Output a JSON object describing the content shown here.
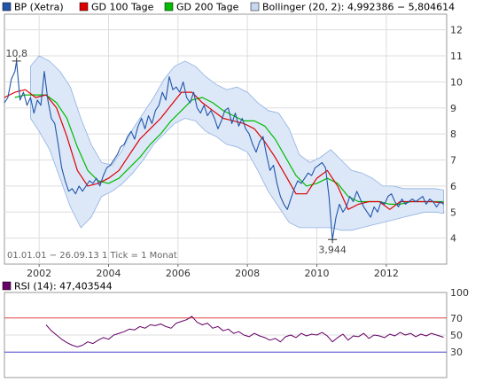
{
  "chart_data": [
    {
      "type": "line",
      "legend": {
        "placement": "top",
        "entries": [
          {
            "label": "BP (Xetra)",
            "color": "#2255aa",
            "swatch": "box-blue"
          },
          {
            "label": "GD 100 Tage",
            "color": "#dd0000",
            "swatch": "box-red"
          },
          {
            "label": "GD 200 Tage",
            "color": "#00bb00",
            "swatch": "box-green"
          },
          {
            "label": "Bollinger (20, 2): 4,992386 − 5,804614",
            "color": "#c8d8f0",
            "swatch": "box-lightblue"
          }
        ]
      },
      "y_ticks": [
        "4",
        "5",
        "6",
        "7",
        "8",
        "9",
        "10",
        "11",
        "12"
      ],
      "x_ticks": [
        "2002",
        "2004",
        "2006",
        "2008",
        "2010",
        "2012"
      ],
      "ylim": [
        3.0,
        12.6
      ],
      "xlim": [
        2001.0,
        2013.74
      ],
      "grid": true,
      "info_text": "01.01.01 − 26.09.13   1 Tick = 1 Monat",
      "annotations": [
        {
          "text": "10,8",
          "x": 2001.35,
          "y": 10.8
        },
        {
          "text": "3,944",
          "x": 2010.45,
          "y": 3.944
        }
      ],
      "series": [
        {
          "name": "BP (Xetra)",
          "color": "#2255aa",
          "x": [
            2001.0,
            2001.1,
            2001.2,
            2001.3,
            2001.35,
            2001.45,
            2001.55,
            2001.65,
            2001.75,
            2001.85,
            2001.95,
            2002.05,
            2002.15,
            2002.25,
            2002.35,
            2002.45,
            2002.55,
            2002.65,
            2002.75,
            2002.85,
            2002.95,
            2003.05,
            2003.15,
            2003.25,
            2003.35,
            2003.45,
            2003.55,
            2003.65,
            2003.75,
            2003.85,
            2003.95,
            2004.05,
            2004.15,
            2004.25,
            2004.35,
            2004.45,
            2004.55,
            2004.65,
            2004.75,
            2004.85,
            2004.95,
            2005.05,
            2005.15,
            2005.25,
            2005.35,
            2005.45,
            2005.55,
            2005.65,
            2005.75,
            2005.85,
            2005.95,
            2006.05,
            2006.15,
            2006.25,
            2006.35,
            2006.45,
            2006.55,
            2006.65,
            2006.75,
            2006.85,
            2006.95,
            2007.05,
            2007.15,
            2007.25,
            2007.35,
            2007.45,
            2007.55,
            2007.65,
            2007.75,
            2007.85,
            2007.95,
            2008.05,
            2008.15,
            2008.25,
            2008.35,
            2008.45,
            2008.55,
            2008.65,
            2008.75,
            2008.85,
            2008.95,
            2009.05,
            2009.15,
            2009.25,
            2009.35,
            2009.45,
            2009.55,
            2009.65,
            2009.75,
            2009.85,
            2009.95,
            2010.05,
            2010.15,
            2010.25,
            2010.35,
            2010.45,
            2010.55,
            2010.65,
            2010.75,
            2010.85,
            2010.95,
            2011.05,
            2011.15,
            2011.25,
            2011.35,
            2011.45,
            2011.55,
            2011.65,
            2011.75,
            2011.85,
            2011.95,
            2012.05,
            2012.15,
            2012.25,
            2012.35,
            2012.45,
            2012.55,
            2012.65,
            2012.75,
            2012.85,
            2012.95,
            2013.05,
            2013.15,
            2013.25,
            2013.35,
            2013.45,
            2013.55,
            2013.65
          ],
          "values": [
            9.2,
            9.4,
            10.1,
            10.4,
            10.8,
            9.3,
            9.6,
            9.1,
            9.4,
            8.8,
            9.3,
            9.1,
            10.4,
            9.3,
            8.6,
            8.4,
            7.6,
            6.7,
            6.2,
            5.8,
            5.9,
            5.7,
            6.0,
            5.8,
            6.0,
            6.2,
            6.1,
            6.3,
            6.0,
            6.4,
            6.7,
            6.8,
            7.0,
            7.2,
            7.5,
            7.6,
            7.9,
            8.1,
            7.8,
            8.3,
            8.6,
            8.2,
            8.7,
            8.4,
            8.9,
            9.1,
            9.6,
            9.3,
            10.2,
            9.7,
            9.8,
            9.6,
            10.0,
            9.4,
            9.2,
            9.6,
            9.0,
            8.8,
            9.1,
            8.7,
            8.9,
            8.6,
            8.2,
            8.5,
            8.9,
            9.0,
            8.4,
            8.8,
            8.3,
            8.6,
            8.2,
            8.0,
            7.6,
            7.3,
            7.7,
            7.9,
            7.2,
            6.6,
            6.8,
            6.1,
            5.6,
            5.3,
            5.1,
            5.5,
            5.9,
            6.2,
            6.1,
            6.3,
            6.5,
            6.4,
            6.7,
            6.8,
            6.9,
            6.7,
            5.6,
            3.94,
            4.8,
            5.3,
            5.0,
            5.2,
            5.6,
            5.4,
            5.8,
            5.5,
            5.2,
            5.0,
            4.8,
            5.2,
            5.0,
            5.4,
            5.3,
            5.6,
            5.7,
            5.4,
            5.2,
            5.5,
            5.3,
            5.4,
            5.5,
            5.4,
            5.5,
            5.6,
            5.3,
            5.5,
            5.4,
            5.2,
            5.4,
            5.3
          ]
        },
        {
          "name": "GD 100 Tage",
          "color": "#dd0000",
          "x": [
            2001.0,
            2001.3,
            2001.6,
            2001.9,
            2002.2,
            2002.5,
            2002.8,
            2003.1,
            2003.4,
            2003.7,
            2004.0,
            2004.3,
            2004.6,
            2004.9,
            2005.2,
            2005.5,
            2005.8,
            2006.1,
            2006.4,
            2006.7,
            2007.0,
            2007.3,
            2007.6,
            2007.9,
            2008.2,
            2008.5,
            2008.8,
            2009.1,
            2009.4,
            2009.7,
            2010.0,
            2010.3,
            2010.6,
            2010.9,
            2011.2,
            2011.5,
            2011.8,
            2012.1,
            2012.4,
            2012.7,
            2013.0,
            2013.3,
            2013.65
          ],
          "values": [
            9.4,
            9.6,
            9.7,
            9.4,
            9.5,
            9.0,
            7.9,
            6.6,
            6.0,
            6.1,
            6.3,
            6.6,
            7.2,
            7.8,
            8.2,
            8.6,
            9.1,
            9.6,
            9.6,
            9.2,
            8.9,
            8.6,
            8.5,
            8.4,
            8.2,
            7.7,
            7.1,
            6.4,
            5.7,
            5.7,
            6.3,
            6.6,
            6.0,
            5.1,
            5.3,
            5.4,
            5.4,
            5.1,
            5.4,
            5.4,
            5.4,
            5.4,
            5.35
          ]
        },
        {
          "name": "GD 200 Tage",
          "color": "#00bb00",
          "x": [
            2001.3,
            2001.6,
            2001.9,
            2002.2,
            2002.5,
            2002.8,
            2003.1,
            2003.4,
            2003.7,
            2004.0,
            2004.3,
            2004.6,
            2004.9,
            2005.2,
            2005.5,
            2005.8,
            2006.1,
            2006.4,
            2006.7,
            2007.0,
            2007.3,
            2007.6,
            2007.9,
            2008.2,
            2008.5,
            2008.8,
            2009.1,
            2009.4,
            2009.7,
            2010.0,
            2010.3,
            2010.6,
            2010.9,
            2011.2,
            2011.5,
            2011.8,
            2012.1,
            2012.4,
            2012.7,
            2013.0,
            2013.3,
            2013.65
          ],
          "values": [
            9.4,
            9.5,
            9.5,
            9.5,
            9.2,
            8.6,
            7.5,
            6.6,
            6.2,
            6.1,
            6.3,
            6.7,
            7.1,
            7.6,
            8.0,
            8.5,
            8.9,
            9.3,
            9.4,
            9.2,
            8.9,
            8.7,
            8.5,
            8.5,
            8.3,
            7.8,
            7.1,
            6.4,
            6.0,
            6.1,
            6.3,
            6.1,
            5.6,
            5.4,
            5.4,
            5.4,
            5.3,
            5.3,
            5.4,
            5.4,
            5.4,
            5.4
          ]
        }
      ],
      "bollinger": {
        "name": "Bollinger (20, 2)",
        "color": "#dce8f8",
        "x": [
          2001.75,
          2002.0,
          2002.3,
          2002.6,
          2002.9,
          2003.2,
          2003.5,
          2003.8,
          2004.1,
          2004.4,
          2004.7,
          2005.0,
          2005.3,
          2005.6,
          2005.9,
          2006.2,
          2006.5,
          2006.8,
          2007.1,
          2007.4,
          2007.7,
          2008.0,
          2008.3,
          2008.6,
          2008.9,
          2009.2,
          2009.5,
          2009.8,
          2010.1,
          2010.4,
          2010.7,
          2011.0,
          2011.3,
          2011.6,
          2011.9,
          2012.2,
          2012.5,
          2012.8,
          2013.1,
          2013.4,
          2013.65
        ],
        "upper": [
          10.6,
          11.0,
          10.8,
          10.4,
          9.8,
          8.6,
          7.6,
          6.9,
          6.8,
          7.4,
          8.2,
          8.8,
          9.4,
          10.1,
          10.6,
          10.8,
          10.6,
          10.2,
          9.9,
          9.7,
          9.8,
          9.6,
          9.2,
          8.9,
          8.8,
          8.2,
          7.2,
          6.9,
          7.1,
          7.4,
          7.0,
          6.6,
          6.5,
          6.3,
          6.0,
          6.0,
          5.9,
          5.9,
          5.9,
          5.9,
          5.85
        ],
        "lower": [
          8.6,
          8.1,
          7.4,
          6.3,
          5.2,
          4.4,
          4.8,
          5.6,
          5.8,
          6.1,
          6.5,
          7.0,
          7.6,
          8.0,
          8.4,
          8.6,
          8.5,
          8.1,
          7.9,
          7.6,
          7.5,
          7.3,
          6.6,
          5.8,
          5.2,
          4.6,
          4.4,
          4.4,
          4.4,
          4.4,
          4.3,
          4.3,
          4.4,
          4.5,
          4.6,
          4.7,
          4.8,
          4.9,
          5.0,
          5.0,
          4.95
        ]
      }
    },
    {
      "type": "line",
      "title": "RSI (14): 47,403544",
      "y_ticks": [
        "30",
        "50",
        "70",
        "100"
      ],
      "ylim": [
        0,
        100
      ],
      "reference_lines": [
        {
          "label": "70",
          "value": 70,
          "color": "#dd4444"
        },
        {
          "label": "30",
          "value": 30,
          "color": "#4444cc"
        }
      ],
      "series": [
        {
          "name": "RSI (14)",
          "color": "#660066",
          "x": [
            2002.2,
            2002.35,
            2002.5,
            2002.65,
            2002.8,
            2002.95,
            2003.1,
            2003.25,
            2003.4,
            2003.55,
            2003.7,
            2003.85,
            2004.0,
            2004.15,
            2004.3,
            2004.45,
            2004.6,
            2004.75,
            2004.9,
            2005.05,
            2005.2,
            2005.35,
            2005.5,
            2005.65,
            2005.8,
            2005.95,
            2006.1,
            2006.25,
            2006.4,
            2006.55,
            2006.7,
            2006.85,
            2007.0,
            2007.15,
            2007.3,
            2007.45,
            2007.6,
            2007.75,
            2007.9,
            2008.05,
            2008.2,
            2008.35,
            2008.5,
            2008.65,
            2008.8,
            2008.95,
            2009.1,
            2009.25,
            2009.4,
            2009.55,
            2009.7,
            2009.85,
            2010.0,
            2010.15,
            2010.3,
            2010.45,
            2010.6,
            2010.75,
            2010.9,
            2011.05,
            2011.2,
            2011.35,
            2011.5,
            2011.65,
            2011.8,
            2011.95,
            2012.1,
            2012.25,
            2012.4,
            2012.55,
            2012.7,
            2012.85,
            2013.0,
            2013.15,
            2013.3,
            2013.45,
            2013.65
          ],
          "values": [
            62,
            55,
            50,
            45,
            41,
            38,
            36,
            38,
            42,
            40,
            44,
            47,
            45,
            50,
            52,
            54,
            57,
            56,
            60,
            58,
            62,
            61,
            63,
            60,
            58,
            64,
            66,
            68,
            72,
            65,
            62,
            64,
            58,
            60,
            55,
            57,
            52,
            54,
            50,
            48,
            52,
            49,
            47,
            44,
            46,
            42,
            48,
            50,
            47,
            52,
            49,
            51,
            50,
            53,
            49,
            42,
            47,
            51,
            44,
            49,
            48,
            52,
            46,
            50,
            49,
            47,
            51,
            49,
            53,
            50,
            52,
            48,
            51,
            49,
            52,
            50,
            47.4
          ]
        }
      ]
    }
  ]
}
